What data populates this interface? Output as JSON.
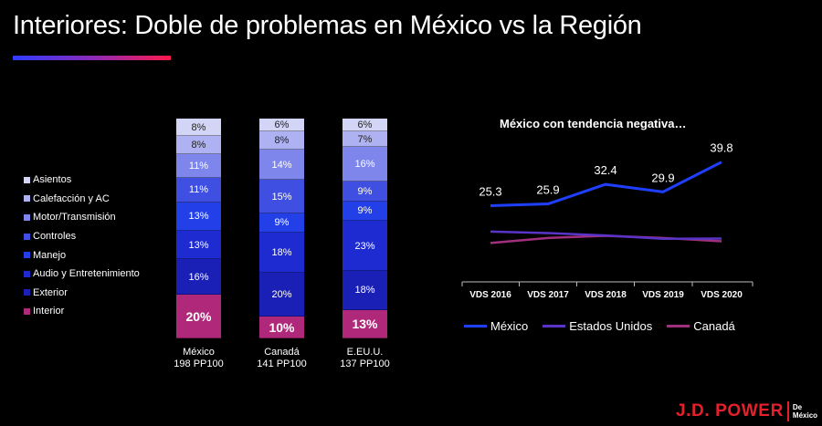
{
  "title": "Interiores: Doble de problemas en México vs la Región",
  "colors": {
    "accent_start": "#2f3cff",
    "accent_end": "#ff1a4a",
    "logo_red": "#e5202b"
  },
  "chart_data": [
    {
      "type": "bar",
      "stacked": true,
      "categories": [
        "México\n198 PP100",
        "Canadá\n141 PP100",
        "E.EU.U.\n137 PP100"
      ],
      "category_lines": [
        [
          "México",
          "198 PP100"
        ],
        [
          "Canadá",
          "141 PP100"
        ],
        [
          "E.EU.U.",
          "137 PP100"
        ]
      ],
      "series": [
        {
          "name": "Interior",
          "color": "#b0287a",
          "values": [
            20,
            10,
            13
          ],
          "labels": [
            "20%",
            "10%",
            "13%"
          ]
        },
        {
          "name": "Exterior",
          "color": "#1a1fb5",
          "values": [
            16,
            20,
            18
          ],
          "labels": [
            "16%",
            "20%",
            "18%"
          ]
        },
        {
          "name": "Audio y Entretenimiento",
          "color": "#1e2bd0",
          "values": [
            13,
            18,
            23
          ],
          "labels": [
            "13%",
            "18%",
            "23%"
          ]
        },
        {
          "name": "Manejo",
          "color": "#2340e8",
          "values": [
            13,
            9,
            9
          ],
          "labels": [
            "13%",
            "9%",
            "9%"
          ]
        },
        {
          "name": "Controles",
          "color": "#3e4fe2",
          "values": [
            11,
            15,
            9
          ],
          "labels": [
            "11%",
            "15%",
            "9%"
          ]
        },
        {
          "name": "Motor/Transmisión",
          "color": "#7e86ec",
          "values": [
            11,
            14,
            16
          ],
          "labels": [
            "11%",
            "14%",
            "16%"
          ]
        },
        {
          "name": "Calefacción y AC",
          "color": "#aeb2f2",
          "values": [
            8,
            8,
            7
          ],
          "labels": [
            "8%",
            "8%",
            "7%"
          ]
        },
        {
          "name": "Asientos",
          "color": "#d3d5f7",
          "values": [
            8,
            6,
            6
          ],
          "labels": [
            "8%",
            "6%",
            "6%"
          ]
        }
      ],
      "legend_order": [
        "Asientos",
        "Calefacción y AC",
        "Motor/Transmisión",
        "Controles",
        "Manejo",
        "Audio y Entretenimiento",
        "Exterior",
        "Interior"
      ],
      "legend_position": "left"
    },
    {
      "type": "line",
      "title": "México con tendencia negativa…",
      "x": [
        "VDS 2016",
        "VDS 2017",
        "VDS 2018",
        "VDS 2019",
        "VDS 2020"
      ],
      "series": [
        {
          "name": "México",
          "color": "#1f3fff",
          "values": [
            25.3,
            25.9,
            32.4,
            29.9,
            39.8
          ],
          "labels": [
            "25.3",
            "25.9",
            "32.4",
            "29.9",
            "39.8"
          ]
        },
        {
          "name": "Estados Unidos",
          "color": "#5a34c8",
          "values": [
            16.7,
            16.2,
            15.4,
            14.3,
            14.4
          ]
        },
        {
          "name": "Canadá",
          "color": "#a0307e",
          "values": [
            12.9,
            14.6,
            15.3,
            14.6,
            13.5
          ]
        }
      ],
      "ylim": [
        0,
        45
      ],
      "legend_position": "bottom"
    }
  ],
  "logo": {
    "main": "J.D. POWER",
    "sub_line1": "De",
    "sub_line2": "México"
  }
}
